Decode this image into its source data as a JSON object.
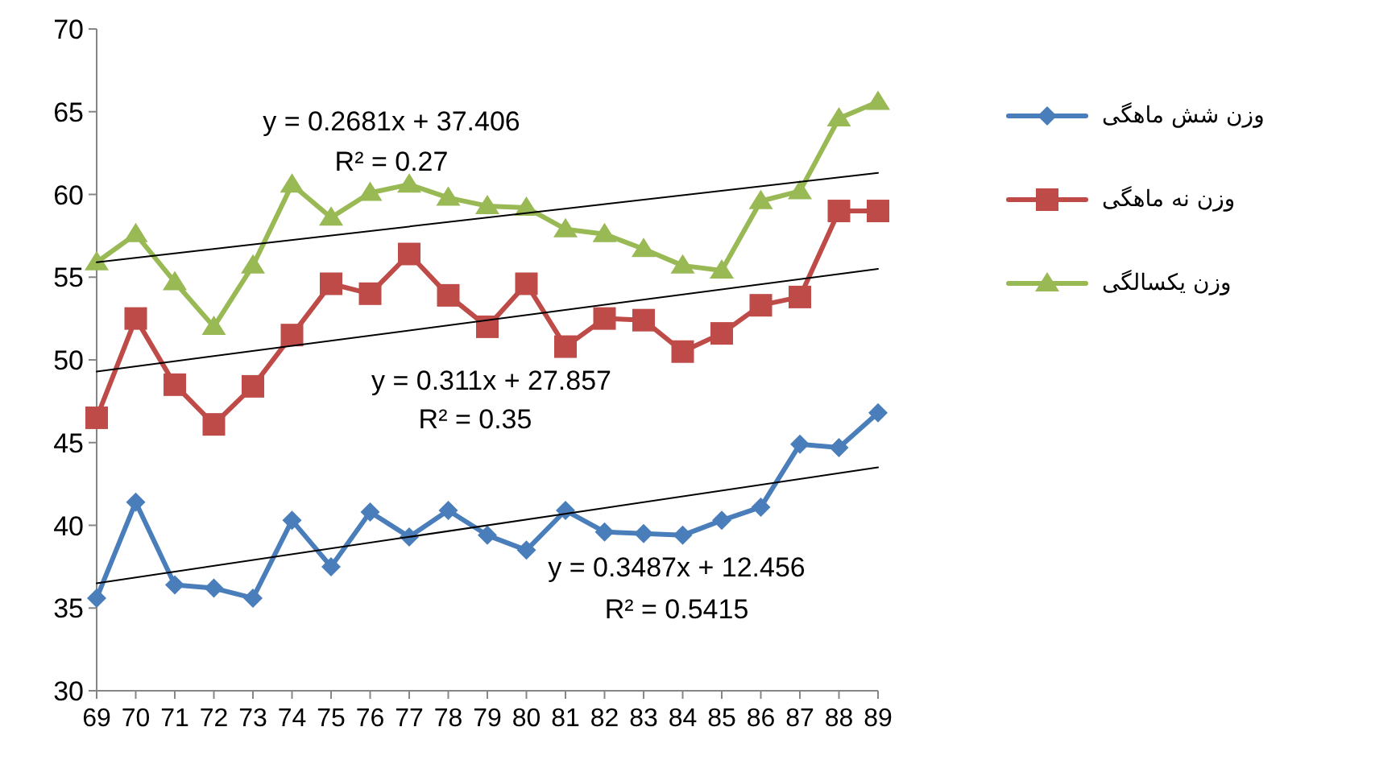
{
  "chart_data": {
    "type": "line",
    "categories": [
      "69",
      "70",
      "71",
      "72",
      "73",
      "74",
      "75",
      "76",
      "77",
      "78",
      "79",
      "80",
      "81",
      "82",
      "83",
      "84",
      "85",
      "86",
      "87",
      "88",
      "89"
    ],
    "series": [
      {
        "name": "وزن شش ماهگی",
        "color": "#4a7ebb",
        "marker": "diamond",
        "values": [
          35.6,
          41.4,
          36.4,
          36.2,
          35.6,
          40.3,
          37.5,
          40.8,
          39.3,
          40.9,
          39.4,
          38.5,
          40.9,
          39.6,
          39.5,
          39.4,
          40.3,
          41.1,
          44.9,
          44.7,
          46.8
        ]
      },
      {
        "name": "وزن نه ماهگی",
        "color": "#be4b48",
        "marker": "square",
        "values": [
          46.5,
          52.5,
          48.5,
          46.1,
          48.4,
          51.5,
          54.6,
          54.0,
          56.4,
          53.9,
          52.0,
          54.6,
          50.8,
          52.5,
          52.4,
          50.5,
          51.6,
          53.3,
          53.8,
          59.0,
          59.0
        ]
      },
      {
        "name": "وزن یکسالگی",
        "color": "#98b954",
        "marker": "triangle",
        "values": [
          55.9,
          57.6,
          54.7,
          52.0,
          55.7,
          60.6,
          58.6,
          60.1,
          60.6,
          59.8,
          59.3,
          59.2,
          57.9,
          57.6,
          56.7,
          55.7,
          55.4,
          59.6,
          60.2,
          64.6,
          65.6
        ]
      },
      {
        "type": "line",
        "color": "#000000",
        "marker": "none",
        "x": [
          "69",
          "89"
        ],
        "values": [
          55.9,
          61.3
        ]
      },
      {
        "type": "line",
        "color": "#000000",
        "marker": "none",
        "x": [
          "69",
          "89"
        ],
        "values": [
          49.3,
          55.5
        ]
      },
      {
        "type": "line",
        "color": "#000000",
        "marker": "none",
        "x": [
          "69",
          "89"
        ],
        "values": [
          36.5,
          43.5
        ]
      }
    ],
    "annotations": [
      "y = 0.2681x + 37.406",
      "R² = 0.27",
      "y = 0.311x + 27.857",
      "R² = 0.35",
      "y = 0.3487x + 12.456",
      "R² = 0.5415"
    ],
    "ylim": [
      30,
      70
    ],
    "yticks": [
      30,
      35,
      40,
      45,
      50,
      55,
      60,
      65,
      70
    ],
    "grid": false,
    "legend": "right"
  }
}
